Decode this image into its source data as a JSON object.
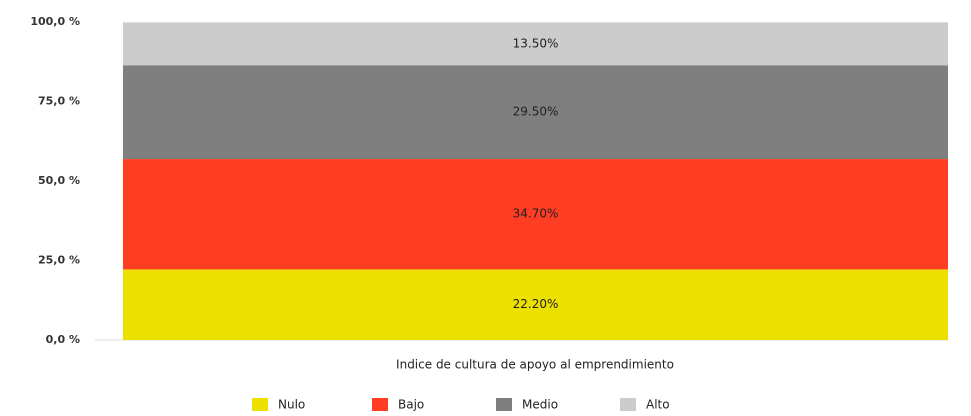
{
  "chart_data": {
    "type": "stacked_bar",
    "xlabel": "Indice de cultura de apoyo al emprendimiento",
    "categories": [
      null
    ],
    "series": [
      {
        "name": "Nulo",
        "color": "#ece000",
        "values": [
          22.2
        ],
        "value_labels": [
          "22.20%"
        ]
      },
      {
        "name": "Bajo",
        "color": "#ff3d22",
        "values": [
          34.7
        ],
        "value_labels": [
          "34.70%"
        ]
      },
      {
        "name": "Medio",
        "color": "#7f7f7f",
        "values": [
          29.5
        ],
        "value_labels": [
          "29.50%"
        ]
      },
      {
        "name": "Alto",
        "color": "#cccccc",
        "values": [
          13.5
        ],
        "value_labels": [
          "13.50%"
        ]
      }
    ],
    "ylim": [
      0,
      100
    ],
    "yticks": [
      {
        "value": 0,
        "label": "0,0 %"
      },
      {
        "value": 25,
        "label": "25,0 %"
      },
      {
        "value": 50,
        "label": "50,0 %"
      },
      {
        "value": 75,
        "label": "75,0 %"
      },
      {
        "value": 100,
        "label": "100,0 %"
      }
    ],
    "legend": "bottom"
  }
}
